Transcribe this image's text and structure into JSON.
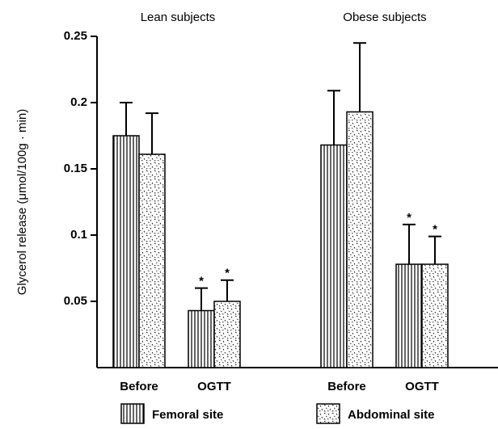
{
  "chart_data": {
    "type": "bar",
    "groups": [
      "Lean subjects",
      "Obese subjects"
    ],
    "categories": [
      "Before",
      "OGTT",
      "Before",
      "OGTT"
    ],
    "ylabel": "Glycerol release (μmol/100g · min)",
    "ylim": [
      0,
      0.25
    ],
    "yticks": [
      0.05,
      0.1,
      0.15,
      0.2,
      0.25
    ],
    "series": [
      {
        "name": "Femoral site",
        "color": "#000000",
        "pattern": "vertical-lines",
        "values": [
          0.175,
          0.043,
          0.168,
          0.078
        ],
        "errors": [
          0.025,
          0.017,
          0.041,
          0.03
        ],
        "marks": [
          null,
          "*",
          null,
          "*"
        ]
      },
      {
        "name": "Abdominal site",
        "color": "#000000",
        "pattern": "dots",
        "values": [
          0.161,
          0.05,
          0.193,
          0.078
        ],
        "errors": [
          0.031,
          0.016,
          0.052,
          0.021
        ],
        "marks": [
          null,
          "*",
          null,
          "*"
        ]
      }
    ]
  }
}
